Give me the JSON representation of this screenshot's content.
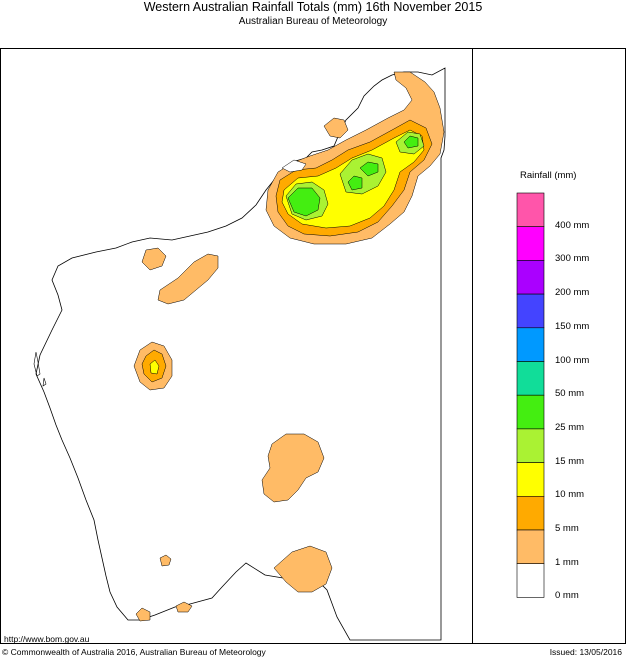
{
  "header": {
    "title": "Western Australian Rainfall Totals (mm) 16th November 2015",
    "subtitle": "Australian Bureau of Meteorology"
  },
  "legend": {
    "title": "Rainfall (mm)",
    "bins": [
      {
        "label": "400 mm",
        "color": "#ff55aa"
      },
      {
        "label": "300 mm",
        "color": "#ff00ff"
      },
      {
        "label": "200 mm",
        "color": "#aa00ff"
      },
      {
        "label": "150 mm",
        "color": "#4444ff"
      },
      {
        "label": "100 mm",
        "color": "#0099ff"
      },
      {
        "label": "50 mm",
        "color": "#11dd99"
      },
      {
        "label": "25 mm",
        "color": "#44ee11"
      },
      {
        "label": "15 mm",
        "color": "#aaf233"
      },
      {
        "label": "10 mm",
        "color": "#ffff00"
      },
      {
        "label": "5 mm",
        "color": "#ffaa00"
      },
      {
        "label": "1 mm",
        "color": "#ffbb66"
      },
      {
        "label": "0 mm",
        "color": "#ffffff"
      }
    ]
  },
  "footer": {
    "url": "http://www.bom.gov.au",
    "copyright": "© Commonwealth of Australia 2016, Australian Bureau of Meteorology",
    "issued": "Issued: 13/05/2016"
  }
}
